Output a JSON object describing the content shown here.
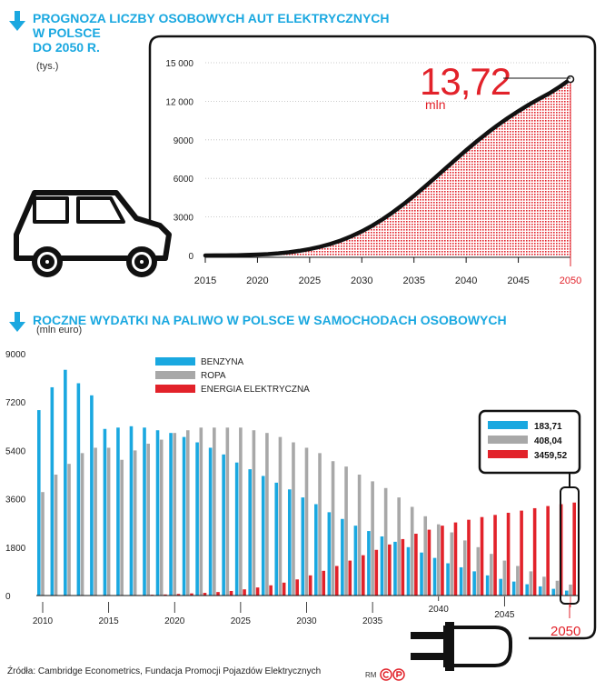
{
  "top": {
    "title_lines": [
      "PROGNOZA LICZBY OSOBOWYCH AUT ELEKTRYCZNYCH",
      "W POLSCE",
      "DO 2050 R."
    ],
    "unit": "(tys.)",
    "callout_value": "13,72",
    "callout_unit": "mln"
  },
  "bottom": {
    "title": "ROCZNE WYDATKI NA PALIWO W POLSCE W SAMOCHODACH OSOBOWYCH",
    "unit": "(mln euro)",
    "values_box": [
      "183,71",
      "408,04",
      "3459,52"
    ],
    "highlight_year": "2050"
  },
  "source": "Źródła: Cambridge Econometrics, Fundacja Promocji Pojazdów Elektrycznych",
  "credit": "RM",
  "colors": {
    "blue": "#1aa8e0",
    "gray": "#a8a8a8",
    "red": "#e2222a",
    "black": "#111111"
  },
  "chart_data": [
    {
      "type": "area",
      "ylim": [
        0,
        15000
      ],
      "yticks": [
        "0",
        "3000",
        "6000",
        "9000",
        "12 000",
        "15 000"
      ],
      "ytick_values": [
        0,
        3000,
        6000,
        9000,
        12000,
        15000
      ],
      "xticks": [
        "2015",
        "2020",
        "2025",
        "2030",
        "2035",
        "2040",
        "2045",
        "2050"
      ],
      "x": [
        2015,
        2016,
        2017,
        2018,
        2019,
        2020,
        2021,
        2022,
        2023,
        2024,
        2025,
        2026,
        2027,
        2028,
        2029,
        2030,
        2031,
        2032,
        2033,
        2034,
        2035,
        2036,
        2037,
        2038,
        2039,
        2040,
        2041,
        2042,
        2043,
        2044,
        2045,
        2046,
        2047,
        2048,
        2049,
        2050
      ],
      "y": [
        0,
        5,
        10,
        20,
        40,
        70,
        110,
        170,
        250,
        360,
        500,
        680,
        900,
        1170,
        1500,
        1880,
        2320,
        2820,
        3380,
        3990,
        4640,
        5330,
        6040,
        6760,
        7480,
        8190,
        8870,
        9520,
        10130,
        10700,
        11230,
        11730,
        12190,
        12630,
        13150,
        13720
      ]
    },
    {
      "type": "bar",
      "ylim": [
        0,
        9000
      ],
      "yticks": [
        "0",
        "1800",
        "3600",
        "5400",
        "7200",
        "9000"
      ],
      "ytick_values": [
        0,
        1800,
        3600,
        5400,
        7200,
        9000
      ],
      "xticks": [
        "2010",
        "2015",
        "2020",
        "2025",
        "2030",
        "2035",
        "2040",
        "2045",
        "2050"
      ],
      "categories": [
        2010,
        2011,
        2012,
        2013,
        2014,
        2015,
        2016,
        2017,
        2018,
        2019,
        2020,
        2021,
        2022,
        2023,
        2024,
        2025,
        2026,
        2027,
        2028,
        2029,
        2030,
        2031,
        2032,
        2033,
        2034,
        2035,
        2036,
        2037,
        2038,
        2039,
        2040,
        2041,
        2042,
        2043,
        2044,
        2045,
        2046,
        2047,
        2048,
        2049,
        2050
      ],
      "series": [
        {
          "name": "BENZYNA",
          "color": "#1aa8e0",
          "values": [
            6900,
            7750,
            8400,
            7900,
            7450,
            6200,
            6250,
            6300,
            6250,
            6150,
            6050,
            5900,
            5700,
            5500,
            5250,
            4950,
            4700,
            4450,
            4200,
            3950,
            3650,
            3400,
            3100,
            2850,
            2600,
            2400,
            2200,
            2000,
            1800,
            1600,
            1400,
            1200,
            1050,
            900,
            750,
            620,
            520,
            420,
            340,
            250,
            184
          ]
        },
        {
          "name": "ROPA",
          "color": "#a8a8a8",
          "values": [
            3850,
            4500,
            4900,
            5300,
            5500,
            5500,
            5050,
            5400,
            5650,
            5800,
            6050,
            6150,
            6250,
            6250,
            6250,
            6250,
            6150,
            6050,
            5900,
            5700,
            5500,
            5300,
            5000,
            4800,
            4500,
            4250,
            4000,
            3650,
            3300,
            2950,
            2650,
            2350,
            2050,
            1800,
            1550,
            1300,
            1100,
            900,
            700,
            550,
            408
          ]
        },
        {
          "name": "ENERGIA ELEKTRYCZNA",
          "color": "#e2222a",
          "values": [
            0,
            0,
            0,
            5,
            5,
            10,
            15,
            20,
            30,
            40,
            60,
            80,
            100,
            130,
            170,
            230,
            300,
            380,
            480,
            600,
            750,
            920,
            1100,
            1300,
            1500,
            1700,
            1900,
            2100,
            2300,
            2450,
            2600,
            2720,
            2820,
            2920,
            3000,
            3080,
            3160,
            3250,
            3330,
            3400,
            3460
          ]
        }
      ]
    }
  ]
}
